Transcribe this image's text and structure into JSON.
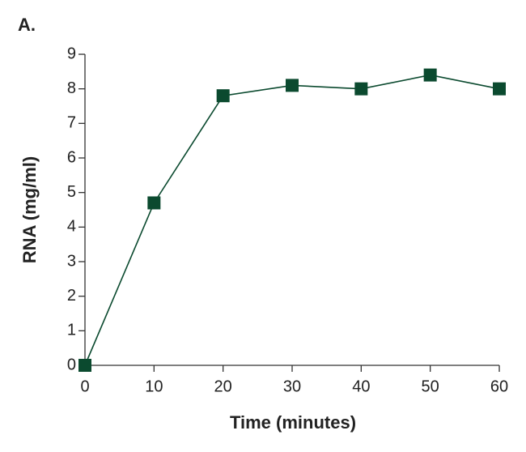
{
  "chart_data": {
    "type": "line",
    "panel_label": "A.",
    "x_label": "Time (minutes)",
    "y_label": "RNA (mg/ml)",
    "x": [
      0,
      10,
      20,
      30,
      40,
      50,
      60
    ],
    "series": [
      {
        "name": "RNA",
        "color": "#0b4a2f",
        "values": [
          0,
          4.7,
          7.8,
          8.1,
          8.0,
          8.4,
          8.0
        ]
      }
    ],
    "xlim": [
      0,
      60
    ],
    "xticks": [
      0,
      10,
      20,
      30,
      40,
      50,
      60
    ],
    "ylim": [
      0,
      9
    ],
    "yticks": [
      0,
      1,
      2,
      3,
      4,
      5,
      6,
      7,
      8,
      9
    ],
    "grid": false,
    "legend": false
  }
}
